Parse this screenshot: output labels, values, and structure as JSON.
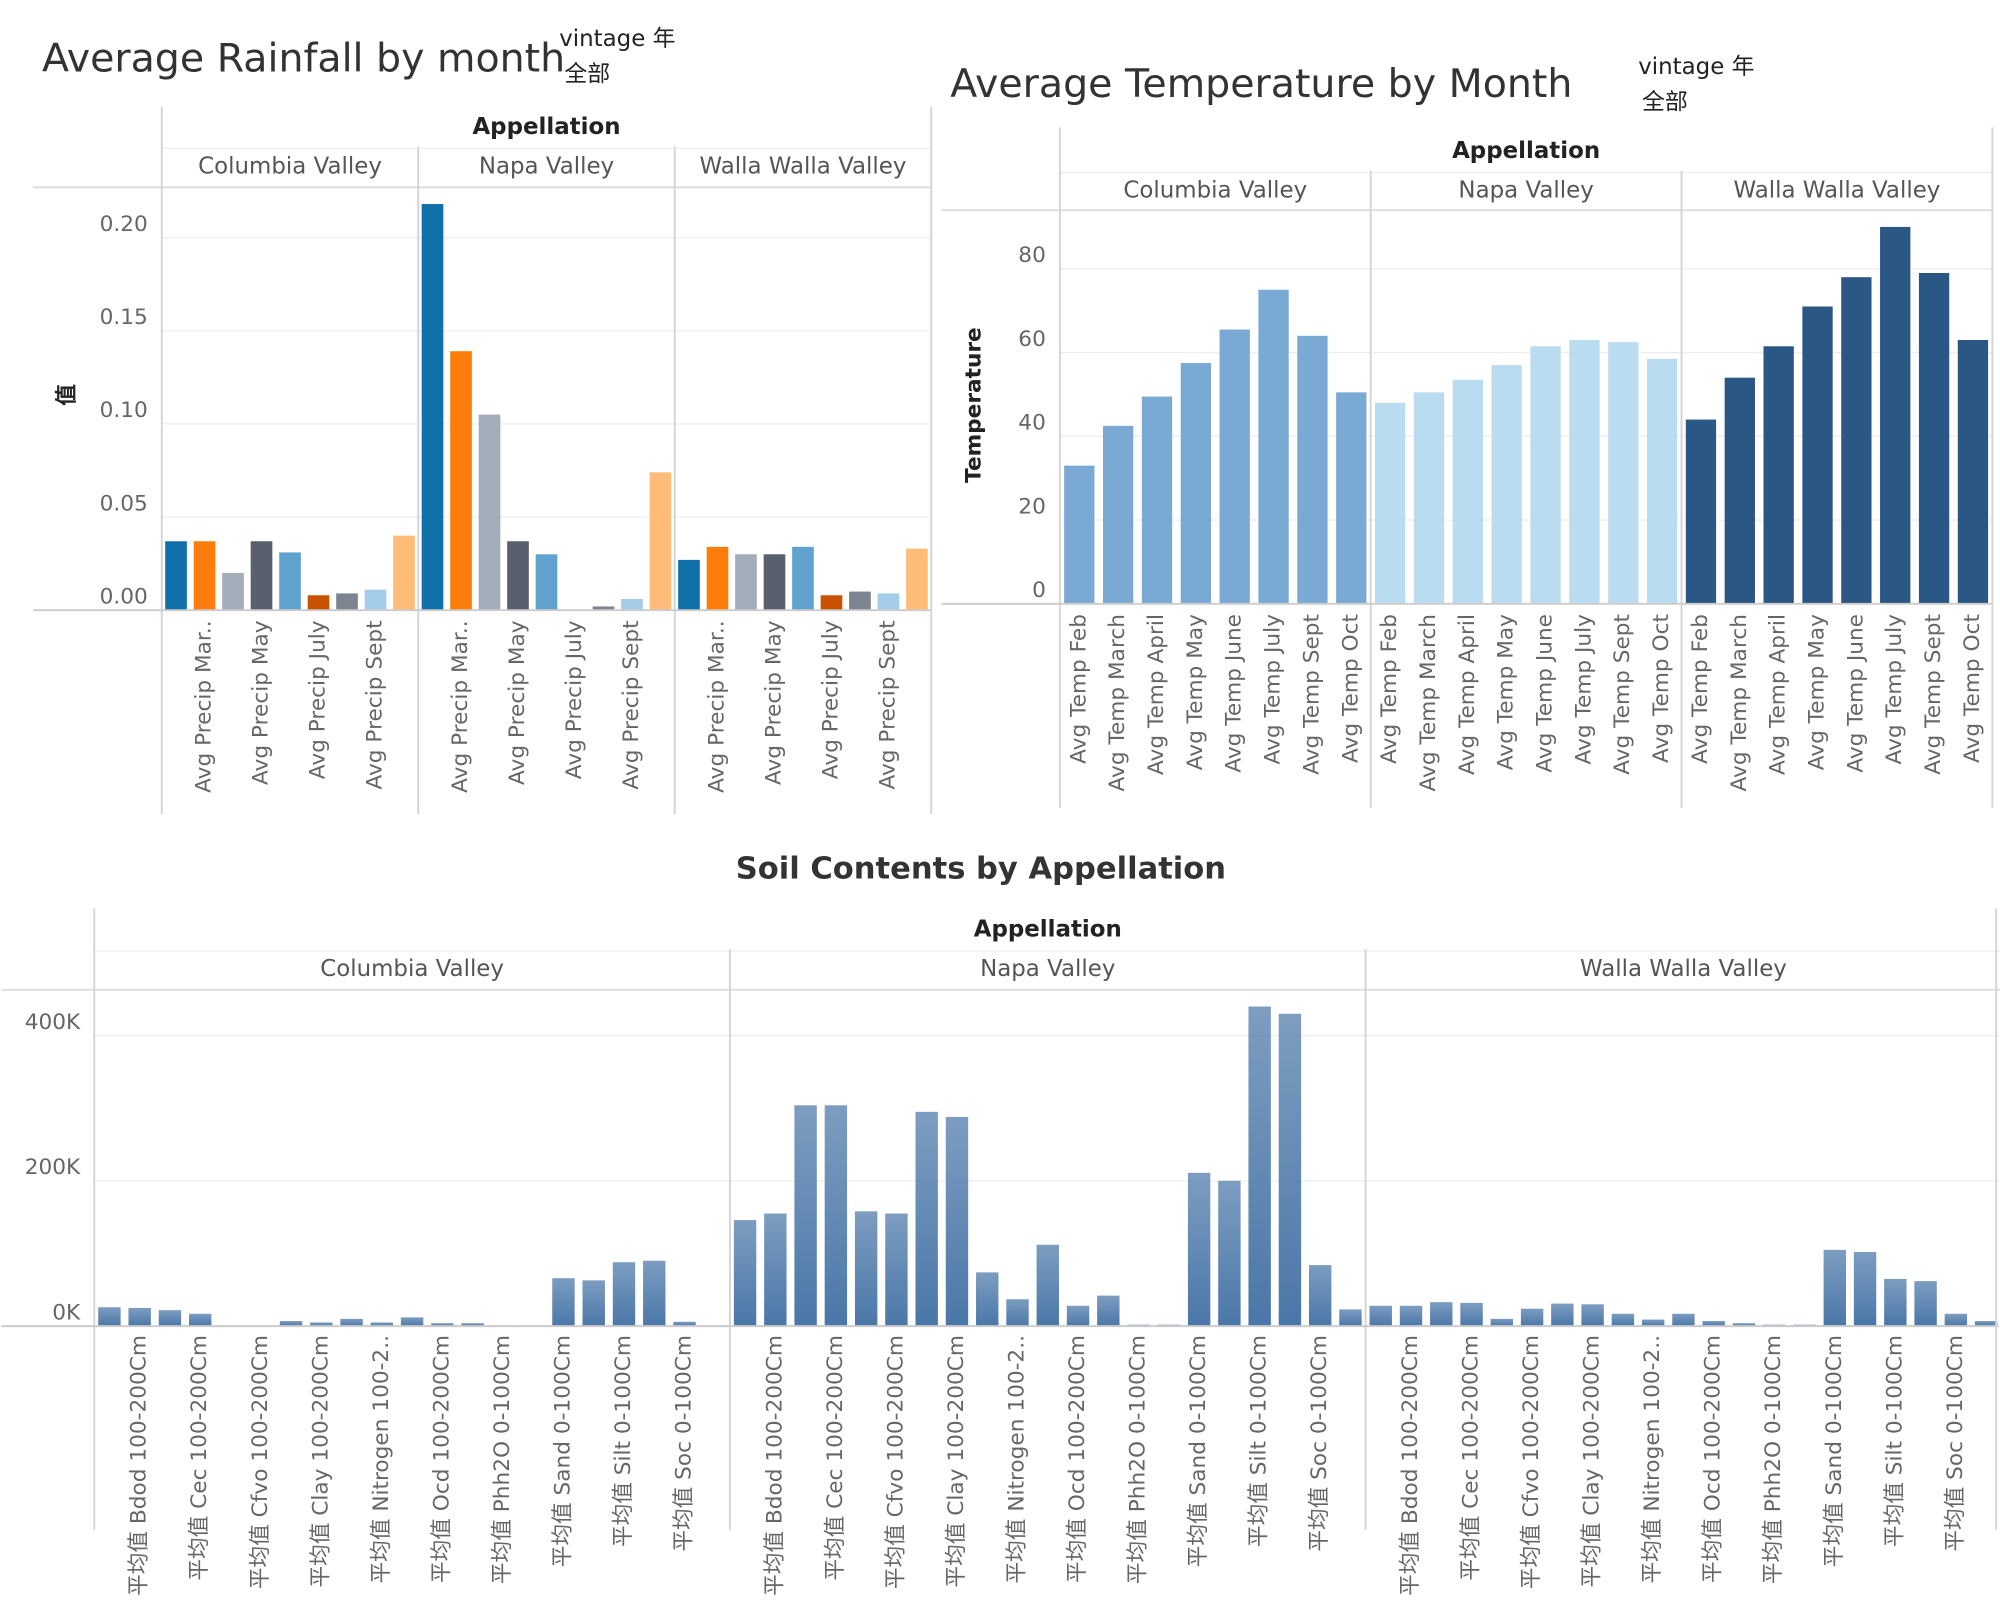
{
  "chart_data": [
    {
      "type": "bar",
      "title": "Average Rainfall by month",
      "filter_label": "vintage 年",
      "filter_value": "全部",
      "facet_label": "Appellation",
      "y_label": "值",
      "categories": [
        null,
        "Avg Precip Mar..",
        null,
        "Avg Precip May",
        null,
        "Avg Precip July",
        null,
        "Avg Precip Sept",
        null
      ],
      "colors": [
        "#1170aa",
        "#fc7d0b",
        "#a3acb9",
        "#57606c",
        "#5fa2ce",
        "#c85200",
        "#7b848f",
        "#a3cce9",
        "#ffbc79"
      ],
      "panels": [
        {
          "name": "Columbia Valley",
          "values": [
            0.037,
            0.037,
            0.02,
            0.037,
            0.031,
            0.008,
            0.009,
            0.011,
            0.04
          ]
        },
        {
          "name": "Napa Valley",
          "values": [
            0.218,
            0.139,
            0.105,
            0.037,
            0.03,
            0,
            0.002,
            0.006,
            0.074
          ]
        },
        {
          "name": "Walla Walla Valley",
          "values": [
            0.027,
            0.034,
            0.03,
            0.03,
            0.034,
            0.008,
            0.01,
            0.009,
            0.033
          ]
        }
      ],
      "ylim": [
        0,
        0.227
      ],
      "yticks": [
        {
          "value": 0,
          "label": "0.00"
        },
        {
          "value": 0.05,
          "label": "0.05"
        },
        {
          "value": 0.1,
          "label": "0.10"
        },
        {
          "value": 0.15,
          "label": "0.15"
        },
        {
          "value": 0.2,
          "label": "0.20"
        }
      ],
      "grid": true
    },
    {
      "type": "bar",
      "title": "Average Temperature by Month",
      "filter_label": "vintage 年",
      "filter_value": "全部",
      "facet_label": "Appellation",
      "y_label": "Temperature",
      "categories": [
        "Avg Temp Feb",
        "Avg Temp March",
        "Avg Temp April",
        "Avg Temp May",
        "Avg Temp June",
        "Avg Temp July",
        "Avg Temp Sept",
        "Avg Temp Oct"
      ],
      "panels": [
        {
          "name": "Columbia Valley",
          "color": "#7aaad4",
          "values": [
            33,
            42.5,
            49.5,
            57.5,
            65.5,
            75,
            64,
            50.5
          ]
        },
        {
          "name": "Napa Valley",
          "color": "#b9dcf0",
          "values": [
            48,
            50.5,
            53.5,
            57,
            61.5,
            63,
            62.5,
            58.5
          ]
        },
        {
          "name": "Walla Walla Valley",
          "color": "#2a5783",
          "values": [
            44,
            54,
            61.5,
            71,
            78,
            90,
            79,
            63
          ]
        }
      ],
      "ylim": [
        0,
        94
      ],
      "yticks": [
        0,
        20,
        40,
        60,
        80
      ],
      "grid": true
    },
    {
      "type": "bar",
      "title": "Soil Contents by Appellation",
      "facet_label": "Appellation",
      "categories": [
        null,
        "平均值 Bdod 100-200Cm",
        null,
        "平均值 Cec 100-200Cm",
        null,
        "平均值 Cfvo 100-200Cm",
        null,
        "平均值 Clay 100-200Cm",
        null,
        "平均值 Nitrogen 100-2..",
        null,
        "平均值 Ocd 100-200Cm",
        null,
        "平均值 Phh2O 0-100Cm",
        null,
        "平均值 Sand 0-100Cm",
        null,
        "平均值 Silt 0-100Cm",
        null,
        "平均值 Soc 0-100Cm",
        null
      ],
      "panels": [
        {
          "name": "Columbia Valley",
          "color": "#4a77a8",
          "values": [
            26000,
            25000,
            22000,
            17000,
            0,
            0,
            7000,
            5000,
            10000,
            5000,
            12000,
            4000,
            4000,
            1000,
            1000,
            66000,
            63000,
            88000,
            90000,
            6000,
            1000
          ]
        },
        {
          "name": "Napa Valley",
          "color": "#4a77a8",
          "values": [
            146000,
            155000,
            304000,
            304000,
            158000,
            155000,
            295000,
            288000,
            74000,
            37000,
            112000,
            28000,
            42000,
            2000,
            2000,
            211000,
            200000,
            440000,
            430000,
            84000,
            23000
          ]
        },
        {
          "name": "Walla Walla Valley",
          "color": "#4a77a8",
          "values": [
            28000,
            28000,
            33000,
            32000,
            10000,
            24000,
            31000,
            30000,
            17000,
            9000,
            17000,
            7000,
            4000,
            2000,
            2000,
            105000,
            102000,
            65000,
            62000,
            17000,
            7000
          ]
        }
      ],
      "ylim": [
        0,
        463000
      ],
      "yticks": [
        {
          "value": 0,
          "label": "0K"
        },
        {
          "value": 200000,
          "label": "200K"
        },
        {
          "value": 400000,
          "label": "400K"
        }
      ],
      "grid": true
    }
  ]
}
